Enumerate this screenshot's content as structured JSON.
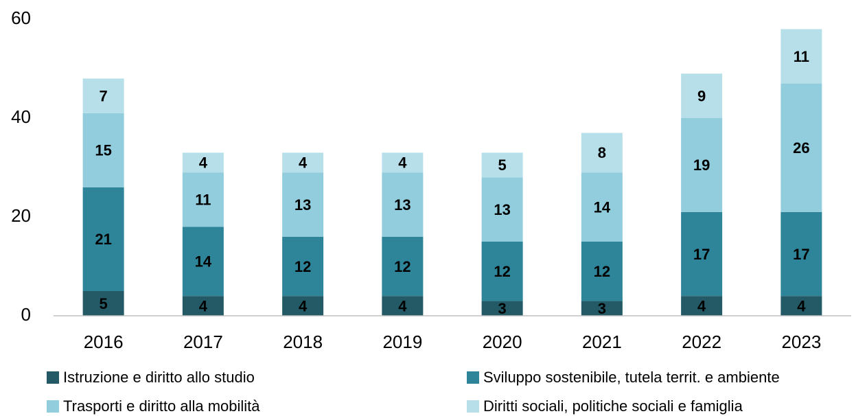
{
  "chart_data": {
    "type": "stacked_bar",
    "categories": [
      "2016",
      "2017",
      "2018",
      "2019",
      "2020",
      "2021",
      "2022",
      "2023"
    ],
    "series": [
      {
        "name": "Istruzione e diritto allo studio",
        "color": "#235a66",
        "values": [
          5,
          4,
          4,
          4,
          3,
          3,
          4,
          4
        ]
      },
      {
        "name": "Sviluppo sostenibile, tutela territ. e ambiente",
        "color": "#2e8499",
        "values": [
          21,
          14,
          12,
          12,
          12,
          12,
          17,
          17
        ]
      },
      {
        "name": "Trasporti e diritto alla mobilità",
        "color": "#92cddd",
        "values": [
          15,
          11,
          13,
          13,
          13,
          14,
          19,
          26
        ]
      },
      {
        "name": "Diritti sociali, politiche sociali e famiglia",
        "color": "#b7dfe9",
        "values": [
          7,
          4,
          4,
          4,
          5,
          8,
          9,
          11
        ]
      }
    ],
    "ylim": [
      0,
      60
    ],
    "yticks": [
      0,
      20,
      40,
      60
    ],
    "grid": false
  }
}
